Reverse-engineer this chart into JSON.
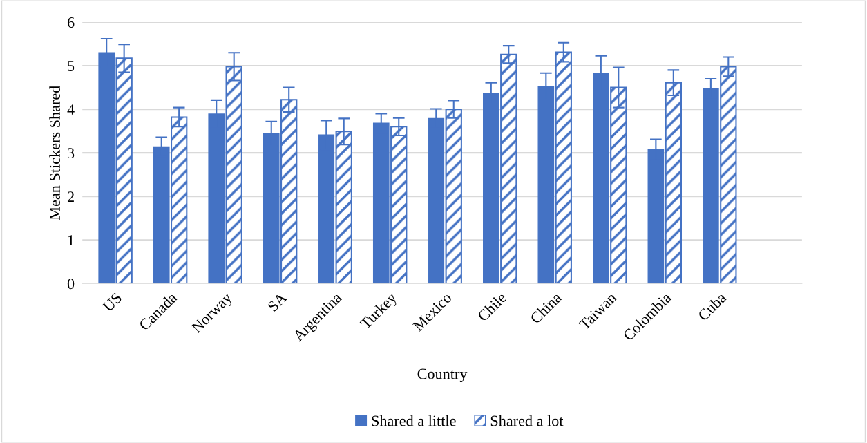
{
  "chart_data": {
    "type": "bar",
    "xlabel": "Country",
    "ylabel": "Mean Stickers Shared",
    "categories": [
      "US",
      "Canada",
      "Norway",
      "SA",
      "Argentina",
      "Turkey",
      "Mexico",
      "Chile",
      "China",
      "Taiwan",
      "Colombia",
      "Cuba"
    ],
    "series": [
      {
        "name": "Shared a little",
        "color": "#4472c4",
        "values": [
          5.3,
          3.14,
          3.89,
          3.44,
          3.41,
          3.68,
          3.79,
          4.37,
          4.53,
          4.83,
          3.07,
          4.48
        ],
        "errors": [
          0.32,
          0.22,
          0.32,
          0.28,
          0.33,
          0.22,
          0.22,
          0.24,
          0.3,
          0.4,
          0.24,
          0.22
        ]
      },
      {
        "name": "Shared a lot",
        "color": "#4472c4",
        "values": [
          5.17,
          3.82,
          4.98,
          4.22,
          3.49,
          3.6,
          4.0,
          5.26,
          5.31,
          4.5,
          4.61,
          4.98
        ],
        "errors": [
          0.32,
          0.22,
          0.32,
          0.28,
          0.3,
          0.2,
          0.2,
          0.2,
          0.22,
          0.46,
          0.29,
          0.22
        ]
      }
    ],
    "ylim": [
      0,
      6
    ],
    "yticks": [
      0,
      1,
      2,
      3,
      4,
      5,
      6
    ],
    "grid": "y",
    "legend": "bottom"
  }
}
